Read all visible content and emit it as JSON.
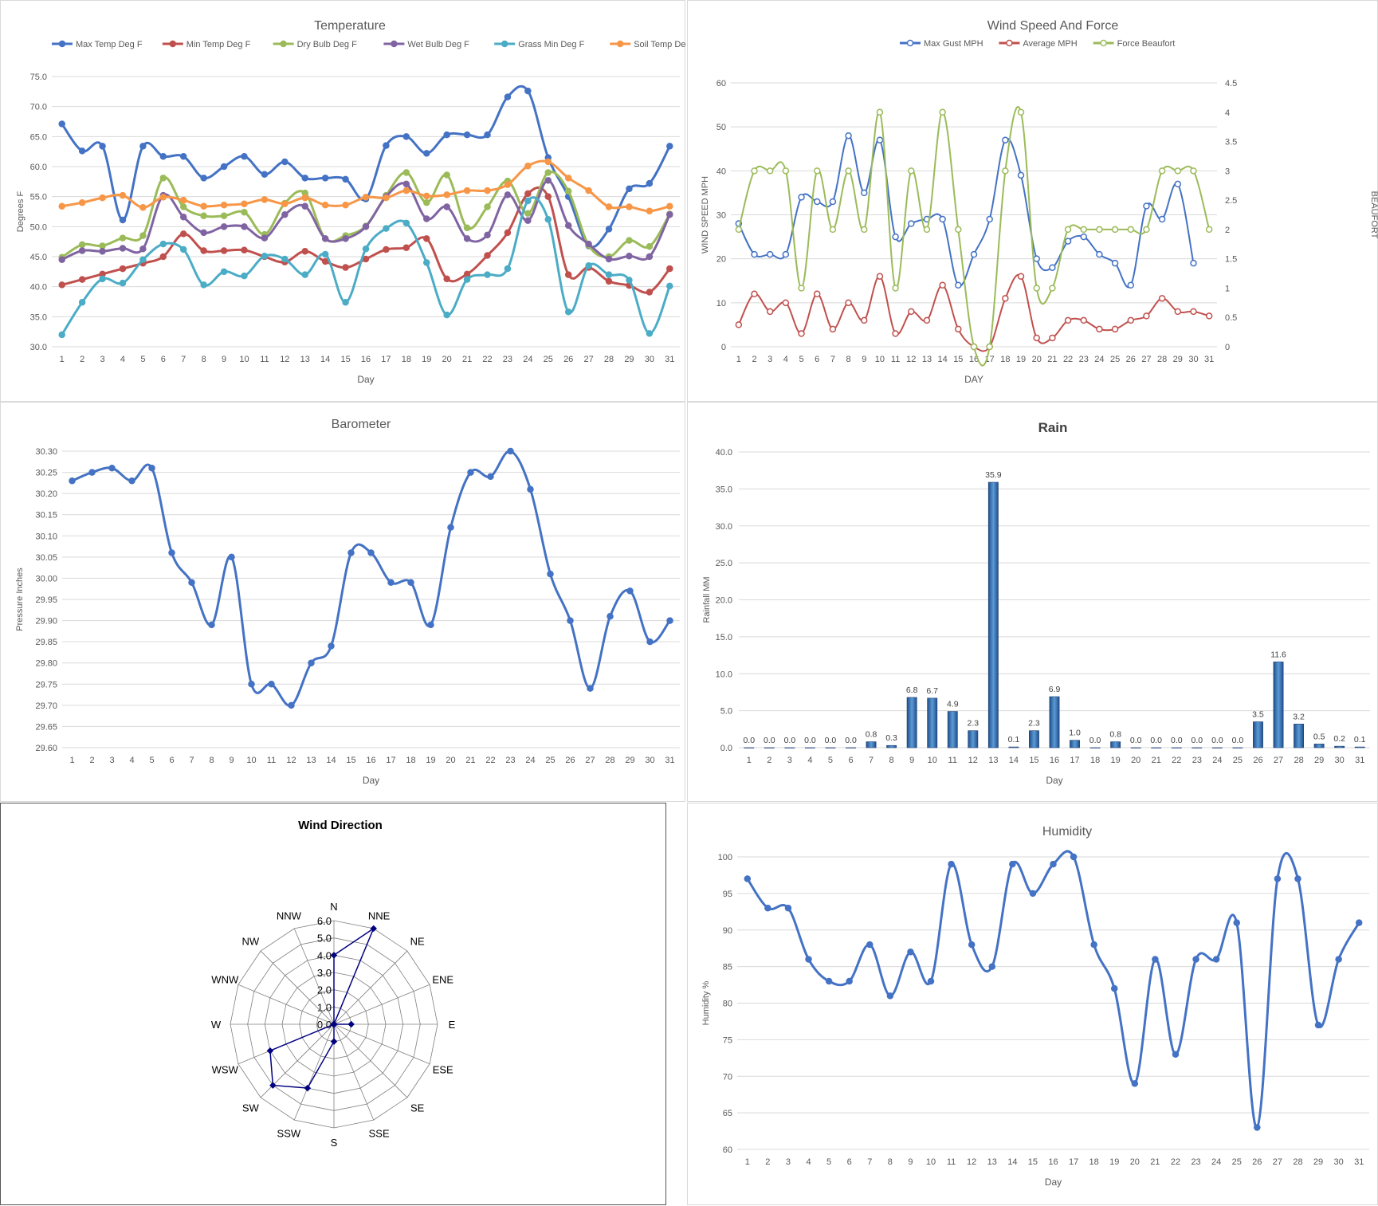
{
  "chart_data": [
    {
      "id": "temp",
      "type": "line",
      "title": "Temperature",
      "xlabel": "Day",
      "ylabel": "Degrees F",
      "ylim": [
        30,
        75
      ],
      "yticks": [
        "30.0",
        "35.0",
        "40.0",
        "45.0",
        "50.0",
        "55.0",
        "60.0",
        "65.0",
        "70.0",
        "75.0"
      ],
      "x": [
        1,
        2,
        3,
        4,
        5,
        6,
        7,
        8,
        9,
        10,
        11,
        12,
        13,
        14,
        15,
        16,
        17,
        18,
        19,
        20,
        21,
        22,
        23,
        24,
        25,
        26,
        27,
        28,
        29,
        30,
        31
      ],
      "legend_position": "top",
      "grid": true,
      "series": [
        {
          "name": "Max Temp Deg F",
          "color": "#4472c4",
          "values": [
            67.1,
            62.6,
            63.4,
            51.1,
            63.4,
            61.7,
            61.7,
            58.1,
            60.0,
            61.7,
            58.7,
            60.8,
            58.1,
            58.1,
            57.9,
            54.6,
            63.5,
            65.0,
            62.2,
            65.3,
            65.3,
            65.3,
            71.6,
            72.6,
            61.5,
            55.0,
            46.8,
            49.6,
            56.3,
            57.2,
            63.4
          ]
        },
        {
          "name": "Min Temp Deg F",
          "color": "#c0504d",
          "values": [
            40.3,
            41.2,
            42.1,
            43.0,
            43.9,
            45.0,
            48.8,
            46.0,
            46.0,
            46.1,
            45.0,
            44.1,
            45.9,
            44.2,
            43.2,
            44.6,
            46.2,
            46.5,
            48.0,
            41.3,
            42.1,
            45.2,
            49.0,
            55.5,
            55.0,
            42.0,
            43.2,
            40.9,
            40.2,
            39.1,
            43.0
          ]
        },
        {
          "name": "Dry Bulb Deg F",
          "color": "#9bbb59",
          "values": [
            44.9,
            47.0,
            46.8,
            48.1,
            48.5,
            58.1,
            53.3,
            51.8,
            51.8,
            52.4,
            48.7,
            53.9,
            55.6,
            48.0,
            48.5,
            50.1,
            55.2,
            59.0,
            54.0,
            58.6,
            49.8,
            53.3,
            57.6,
            52.2,
            59.0,
            55.9,
            46.9,
            45.0,
            47.7,
            46.7,
            52.1
          ]
        },
        {
          "name": "Wet Bulb Deg F",
          "color": "#8064a2",
          "values": [
            44.5,
            46.0,
            45.9,
            46.4,
            46.3,
            55.2,
            51.6,
            49.0,
            50.0,
            50.0,
            48.1,
            52.0,
            53.4,
            48.0,
            48.0,
            50.0,
            55.0,
            57.1,
            51.3,
            53.3,
            48.0,
            48.6,
            55.3,
            51.0,
            57.7,
            50.2,
            47.1,
            44.6,
            45.1,
            45.0,
            52.0
          ]
        },
        {
          "name": "Grass Min Deg F",
          "color": "#4bacc6",
          "values": [
            32.0,
            37.4,
            41.3,
            40.6,
            44.5,
            47.1,
            46.2,
            40.3,
            42.5,
            41.8,
            45.1,
            44.6,
            42.0,
            45.4,
            37.4,
            46.3,
            49.7,
            50.6,
            44.0,
            35.3,
            41.2,
            42.0,
            43.0,
            54.3,
            51.2,
            35.8,
            43.5,
            42.0,
            41.1,
            32.2,
            40.1
          ]
        },
        {
          "name": "Soil Temp Deg F",
          "color": "#f79646",
          "values": [
            53.4,
            54.0,
            54.8,
            55.2,
            53.2,
            54.9,
            54.4,
            53.4,
            53.6,
            53.8,
            54.5,
            53.8,
            54.8,
            53.6,
            53.6,
            54.9,
            54.8,
            56.0,
            55.1,
            55.3,
            56.0,
            56.0,
            57.0,
            60.1,
            60.8,
            58.1,
            56.0,
            53.3,
            53.3,
            52.6,
            53.4
          ]
        }
      ]
    },
    {
      "id": "wind",
      "type": "line",
      "title": "Wind Speed And Force",
      "xlabel": "DAY",
      "ylabel": "WIND SPEED MPH",
      "y2label": "BEAUFORT",
      "ylim": [
        0,
        60
      ],
      "y2lim": [
        0,
        4.5
      ],
      "yticks": [
        "0",
        "10",
        "20",
        "30",
        "40",
        "50",
        "60"
      ],
      "y2ticks": [
        "0",
        "0.5",
        "1",
        "1.5",
        "2",
        "2.5",
        "3",
        "3.5",
        "4",
        "4.5"
      ],
      "x": [
        1,
        2,
        3,
        4,
        5,
        6,
        7,
        8,
        9,
        10,
        11,
        12,
        13,
        14,
        15,
        16,
        17,
        18,
        19,
        20,
        21,
        22,
        23,
        24,
        25,
        26,
        27,
        28,
        29,
        30,
        31
      ],
      "legend_position": "top",
      "grid": true,
      "series": [
        {
          "name": "Max Gust MPH",
          "color": "#4472c4",
          "axis": "left",
          "values": [
            28,
            21,
            21,
            21,
            34,
            33,
            33,
            48,
            35,
            47,
            25,
            28,
            29,
            29,
            14,
            21,
            29,
            47,
            39,
            20,
            18,
            24,
            25,
            21,
            19,
            14,
            32,
            29,
            37,
            19,
            null
          ]
        },
        {
          "name": "Average MPH",
          "color": "#c0504d",
          "axis": "left",
          "values": [
            5,
            12,
            8,
            10,
            3,
            12,
            4,
            10,
            6,
            16,
            3,
            8,
            6,
            14,
            4,
            0,
            0,
            11,
            16,
            2,
            2,
            6,
            6,
            4,
            4,
            6,
            7,
            11,
            8,
            8,
            7
          ]
        },
        {
          "name": "Force Beaufort",
          "color": "#9bbb59",
          "axis": "right",
          "values": [
            2,
            3,
            3,
            3,
            1,
            3,
            2,
            3,
            2,
            4,
            1,
            3,
            2,
            4,
            2,
            0,
            0,
            3,
            4,
            1,
            1,
            2,
            2,
            2,
            2,
            2,
            2,
            3,
            3,
            3,
            2
          ]
        }
      ]
    },
    {
      "id": "baro",
      "type": "line",
      "title": "Barometer",
      "xlabel": "Day",
      "ylabel": "Pressure Inches",
      "ylim": [
        29.6,
        30.3
      ],
      "yticks": [
        "29.60",
        "29.65",
        "29.70",
        "29.75",
        "29.80",
        "29.85",
        "29.90",
        "29.95",
        "30.00",
        "30.05",
        "30.10",
        "30.15",
        "30.20",
        "30.25",
        "30.30"
      ],
      "x": [
        1,
        2,
        3,
        4,
        5,
        6,
        7,
        8,
        9,
        10,
        11,
        12,
        13,
        14,
        15,
        16,
        17,
        18,
        19,
        20,
        21,
        22,
        23,
        24,
        25,
        26,
        27,
        28,
        29,
        30,
        31
      ],
      "grid": true,
      "series": [
        {
          "color": "#4472c4",
          "values": [
            30.23,
            30.25,
            30.26,
            30.23,
            30.26,
            30.06,
            29.99,
            29.89,
            30.05,
            29.75,
            29.75,
            29.7,
            29.8,
            29.84,
            30.06,
            30.06,
            29.99,
            29.99,
            29.89,
            30.12,
            30.25,
            30.24,
            30.3,
            30.21,
            30.01,
            29.9,
            29.74,
            29.91,
            29.97,
            29.85,
            29.9
          ]
        }
      ]
    },
    {
      "id": "rain",
      "type": "bar",
      "title": "Rain",
      "xlabel": "Day",
      "ylabel": "Rainfall MM",
      "ylim": [
        0,
        40
      ],
      "yticks": [
        "0.0",
        "5.0",
        "10.0",
        "15.0",
        "20.0",
        "25.0",
        "30.0",
        "35.0",
        "40.0"
      ],
      "categories": [
        "1",
        "2",
        "3",
        "4",
        "5",
        "6",
        "7",
        "8",
        "9",
        "10",
        "11",
        "12",
        "13",
        "14",
        "15",
        "16",
        "17",
        "18",
        "19",
        "20",
        "21",
        "22",
        "23",
        "24",
        "25",
        "26",
        "27",
        "28",
        "29",
        "30",
        "31"
      ],
      "values": [
        0.0,
        0.0,
        0.0,
        0.0,
        0.0,
        0.0,
        0.8,
        0.3,
        6.8,
        6.7,
        4.9,
        2.3,
        35.9,
        0.1,
        2.3,
        6.9,
        1.0,
        0.0,
        0.8,
        0.0,
        0.0,
        0.0,
        0.0,
        0.0,
        0.0,
        3.5,
        11.6,
        3.2,
        0.5,
        0.2,
        0.1
      ],
      "labels": [
        "0.0",
        "0.0",
        "0.0",
        "0.0",
        "0.0",
        "0.0",
        "0.8",
        "0.3",
        "6.8",
        "6.7",
        "4.9",
        "2.3",
        "35.9",
        "0.1",
        "2.3",
        "6.9",
        "1.0",
        "0.0",
        "0.8",
        "0.0",
        "0.0",
        "0.0",
        "0.0",
        "0.0",
        "0.0",
        "3.5",
        "11.6",
        "3.2",
        "0.5",
        "0.2",
        "0.1"
      ],
      "grid": true,
      "color": "#2e6bbd"
    },
    {
      "id": "dir",
      "type": "radar",
      "title": "Wind Direction",
      "rlim": [
        0,
        6
      ],
      "rticks": [
        "0.0",
        "1.0",
        "2.0",
        "3.0",
        "4.0",
        "5.0",
        "6.0"
      ],
      "categories": [
        "N",
        "NNE",
        "NE",
        "ENE",
        "E",
        "ESE",
        "SE",
        "SSE",
        "S",
        "SSW",
        "SW",
        "WSW",
        "W",
        "WNW",
        "NW",
        "NNW"
      ],
      "values": [
        4,
        6,
        0,
        0,
        1,
        0,
        0,
        0,
        1,
        4,
        5,
        4,
        0,
        0,
        0,
        0
      ],
      "color": "#000080"
    },
    {
      "id": "hum",
      "type": "line",
      "title": "Humidity",
      "xlabel": "Day",
      "ylabel": "Humidity %",
      "ylim": [
        60,
        100
      ],
      "yticks": [
        "60",
        "65",
        "70",
        "75",
        "80",
        "85",
        "90",
        "95",
        "100"
      ],
      "x": [
        1,
        2,
        3,
        4,
        5,
        6,
        7,
        8,
        9,
        10,
        11,
        12,
        13,
        14,
        15,
        16,
        17,
        18,
        19,
        20,
        21,
        22,
        23,
        24,
        25,
        26,
        27,
        28,
        29,
        30,
        31
      ],
      "grid": true,
      "series": [
        {
          "color": "#4472c4",
          "values": [
            97,
            93,
            93,
            86,
            83,
            83,
            88,
            81,
            87,
            83,
            99,
            88,
            85,
            99,
            95,
            99,
            100,
            88,
            82,
            69,
            86,
            73,
            86,
            86,
            91,
            63,
            97,
            97,
            77,
            86,
            91
          ]
        }
      ]
    }
  ]
}
